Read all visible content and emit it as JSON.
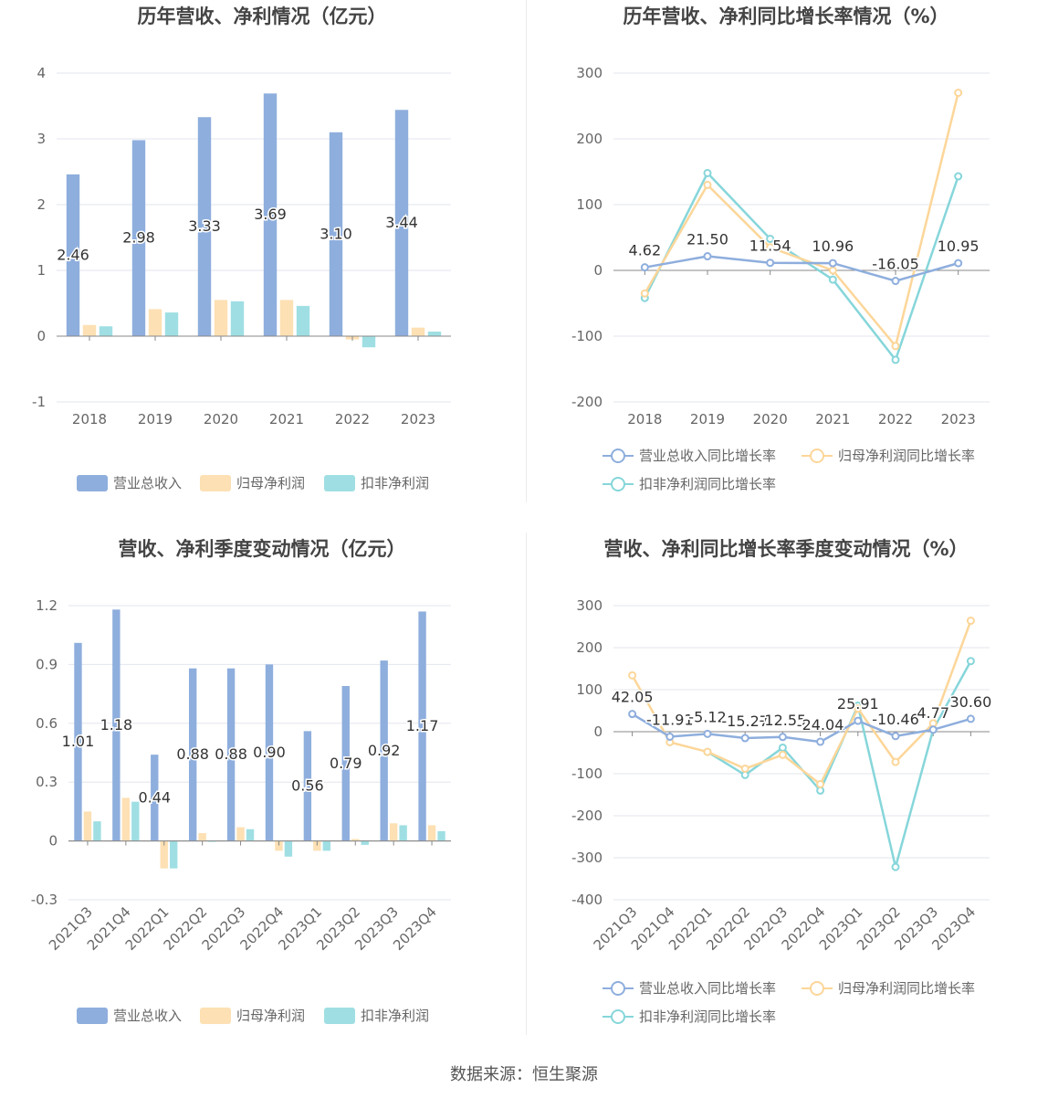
{
  "footer": {
    "source": "数据来源：恒生聚源"
  },
  "colors": {
    "revenue": "#8eaedd",
    "parent": "#fde0b3",
    "deducted": "#9fdfe3",
    "revenue_line": "#8eaedd",
    "parent_line": "#fcd699",
    "deducted_line": "#86d6da"
  },
  "legend": {
    "bar": [
      "营业总收入",
      "归母净利润",
      "扣非净利润"
    ],
    "line": [
      "营业总收入同比增长率",
      "归母净利润同比增长率",
      "扣非净利润同比增长率"
    ]
  },
  "chart_data": [
    {
      "id": "annual-bar",
      "type": "bar",
      "title": "历年营收、净利情况（亿元）",
      "categories": [
        "2018",
        "2019",
        "2020",
        "2021",
        "2022",
        "2023"
      ],
      "series": [
        {
          "name": "营业总收入",
          "values": [
            2.46,
            2.98,
            3.33,
            3.69,
            3.1,
            3.44
          ],
          "data_labels": [
            "2.46",
            "2.98",
            "3.33",
            "3.69",
            "3.10",
            "3.44"
          ]
        },
        {
          "name": "归母净利润",
          "values": [
            0.17,
            0.41,
            0.55,
            0.55,
            -0.05,
            0.13
          ]
        },
        {
          "name": "扣非净利润",
          "values": [
            0.15,
            0.36,
            0.53,
            0.46,
            -0.17,
            0.07
          ]
        }
      ],
      "ylim": [
        -1,
        4
      ],
      "yticks": [
        -1,
        0,
        1,
        2,
        3,
        4
      ],
      "ytick_labels": [
        "-1",
        "0",
        "1",
        "2",
        "3",
        "4"
      ],
      "grid": true,
      "legend_position": "bottom"
    },
    {
      "id": "annual-line",
      "type": "line",
      "title": "历年营收、净利同比增长率情况（%）",
      "categories": [
        "2018",
        "2019",
        "2020",
        "2021",
        "2022",
        "2023"
      ],
      "series": [
        {
          "name": "营业总收入同比增长率",
          "values": [
            4.62,
            21.5,
            11.54,
            10.96,
            -16.05,
            10.95
          ],
          "data_labels": [
            "4.62",
            "21.50",
            "11.54",
            "10.96",
            "-16.05",
            "10.95"
          ]
        },
        {
          "name": "归母净利润同比增长率",
          "values": [
            -35,
            130,
            35,
            0,
            -115,
            270
          ]
        },
        {
          "name": "扣非净利润同比增长率",
          "values": [
            -42,
            148,
            48,
            -14,
            -136,
            143
          ]
        }
      ],
      "ylim": [
        -200,
        300
      ],
      "yticks": [
        -200,
        -100,
        0,
        100,
        200,
        300
      ],
      "ytick_labels": [
        "-200",
        "-100",
        "0",
        "100",
        "200",
        "300"
      ],
      "grid": true,
      "legend_position": "bottom"
    },
    {
      "id": "quarter-bar",
      "type": "bar",
      "title": "营收、净利季度变动情况（亿元）",
      "categories": [
        "2021Q3",
        "2021Q4",
        "2022Q1",
        "2022Q2",
        "2022Q3",
        "2022Q4",
        "2023Q1",
        "2023Q2",
        "2023Q3",
        "2023Q4"
      ],
      "series": [
        {
          "name": "营业总收入",
          "values": [
            1.01,
            1.18,
            0.44,
            0.88,
            0.88,
            0.9,
            0.56,
            0.79,
            0.92,
            1.17
          ],
          "data_labels": [
            "1.01",
            "1.18",
            "0.44",
            "0.88",
            "0.88",
            "0.90",
            "0.56",
            "0.79",
            "0.92",
            "1.17"
          ]
        },
        {
          "name": "归母净利润",
          "values": [
            0.15,
            0.22,
            -0.14,
            0.04,
            0.07,
            -0.05,
            -0.05,
            0.01,
            0.09,
            0.08
          ]
        },
        {
          "name": "扣非净利润",
          "values": [
            0.1,
            0.2,
            -0.14,
            0.0,
            0.06,
            -0.08,
            -0.05,
            -0.02,
            0.08,
            0.05
          ]
        }
      ],
      "ylim": [
        -0.3,
        1.2
      ],
      "yticks": [
        -0.3,
        0,
        0.3,
        0.6,
        0.9,
        1.2
      ],
      "ytick_labels": [
        "-0.3",
        "0",
        "0.3",
        "0.6",
        "0.9",
        "1.2"
      ],
      "grid": true,
      "legend_position": "bottom"
    },
    {
      "id": "quarter-line",
      "type": "line",
      "title": "营收、净利同比增长率季度变动情况（%）",
      "categories": [
        "2021Q3",
        "2021Q4",
        "2022Q1",
        "2022Q2",
        "2022Q3",
        "2022Q4",
        "2023Q1",
        "2023Q2",
        "2023Q3",
        "2023Q4"
      ],
      "series": [
        {
          "name": "营业总收入同比增长率",
          "values": [
            42.05,
            -11.91,
            -5.12,
            -15.27,
            -12.55,
            -24.04,
            25.91,
            -10.46,
            4.77,
            30.6
          ],
          "data_labels": [
            "42.05",
            "-11.91",
            "-5.12",
            "-15.27",
            "-12.55",
            "-24.04",
            "25.91",
            "-10.46",
            "4.77",
            "30.60"
          ]
        },
        {
          "name": "归母净利润同比增长率",
          "values": [
            134,
            -25,
            -48,
            -88,
            -55,
            -125,
            55,
            -72,
            20,
            264
          ]
        },
        {
          "name": "扣非净利润同比增长率",
          "values": [
            null,
            null,
            -48,
            -103,
            -38,
            -140,
            62,
            -322,
            5,
            168
          ]
        }
      ],
      "ylim": [
        -400,
        300
      ],
      "yticks": [
        -400,
        -300,
        -200,
        -100,
        0,
        100,
        200,
        300
      ],
      "ytick_labels": [
        "-400",
        "-300",
        "-200",
        "-100",
        "0",
        "100",
        "200",
        "300"
      ],
      "grid": true,
      "legend_position": "bottom"
    }
  ]
}
